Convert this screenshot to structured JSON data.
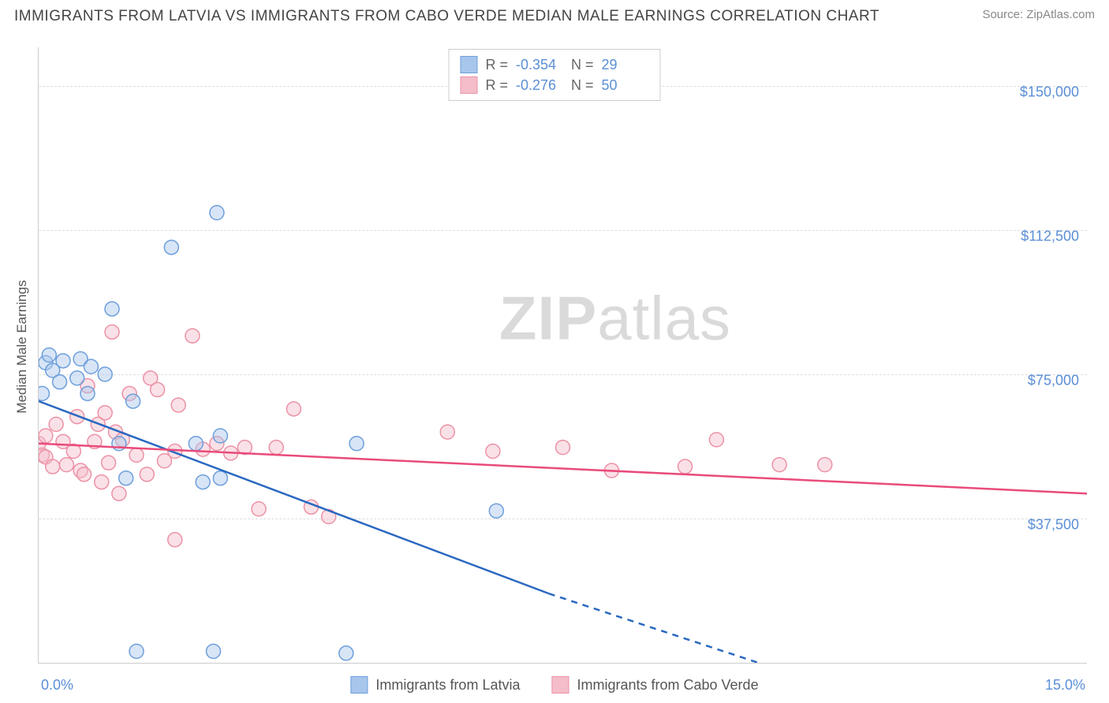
{
  "title": "IMMIGRANTS FROM LATVIA VS IMMIGRANTS FROM CABO VERDE MEDIAN MALE EARNINGS CORRELATION CHART",
  "source": "Source: ZipAtlas.com",
  "ylabel": "Median Male Earnings",
  "watermark_a": "ZIP",
  "watermark_b": "atlas",
  "chart": {
    "type": "scatter",
    "xlim": [
      0,
      15
    ],
    "ylim": [
      0,
      160000
    ],
    "xticks": [
      {
        "v": 0,
        "label": "0.0%"
      },
      {
        "v": 15,
        "label": "15.0%"
      }
    ],
    "yticks": [
      {
        "v": 37500,
        "label": "$37,500"
      },
      {
        "v": 75000,
        "label": "$75,000"
      },
      {
        "v": 112500,
        "label": "$112,500"
      },
      {
        "v": 150000,
        "label": "$150,000"
      }
    ],
    "grid_color": "#dddddd",
    "axis_color": "#cccccc",
    "background_color": "#ffffff",
    "marker_radius": 9,
    "marker_opacity": 0.45,
    "line_width": 2.5,
    "series": [
      {
        "name": "Immigrants from Latvia",
        "color_fill": "#a8c6ec",
        "color_stroke": "#6d9fdc",
        "line_color": "#2a68c0",
        "R": "-0.354",
        "N": "29",
        "trend": {
          "x1": 0,
          "y1": 68000,
          "x2": 7.3,
          "y2": 18000,
          "x2_dash": 10.3,
          "y2_dash": 0
        },
        "points": [
          {
            "x": 0.05,
            "y": 70000
          },
          {
            "x": 0.1,
            "y": 78000
          },
          {
            "x": 0.15,
            "y": 80000
          },
          {
            "x": 0.2,
            "y": 76000
          },
          {
            "x": 0.3,
            "y": 73000
          },
          {
            "x": 0.35,
            "y": 78500
          },
          {
            "x": 0.55,
            "y": 74000
          },
          {
            "x": 0.6,
            "y": 79000
          },
          {
            "x": 0.7,
            "y": 70000
          },
          {
            "x": 0.75,
            "y": 77000
          },
          {
            "x": 0.95,
            "y": 75000
          },
          {
            "x": 1.05,
            "y": 92000
          },
          {
            "x": 1.15,
            "y": 57000
          },
          {
            "x": 1.25,
            "y": 48000
          },
          {
            "x": 1.35,
            "y": 68000
          },
          {
            "x": 1.4,
            "y": 3000
          },
          {
            "x": 1.9,
            "y": 108000
          },
          {
            "x": 2.25,
            "y": 57000
          },
          {
            "x": 2.35,
            "y": 47000
          },
          {
            "x": 2.5,
            "y": 3000
          },
          {
            "x": 2.55,
            "y": 117000
          },
          {
            "x": 2.6,
            "y": 48000
          },
          {
            "x": 2.6,
            "y": 59000
          },
          {
            "x": 4.4,
            "y": 2500
          },
          {
            "x": 4.55,
            "y": 57000
          },
          {
            "x": 6.55,
            "y": 39500
          }
        ]
      },
      {
        "name": "Immigrants from Cabo Verde",
        "color_fill": "#f4bdc9",
        "color_stroke": "#ec92a6",
        "line_color": "#e94b7a",
        "R": "-0.276",
        "N": "50",
        "trend": {
          "x1": 0,
          "y1": 57000,
          "x2": 15,
          "y2": 44000
        },
        "points": [
          {
            "x": 0.0,
            "y": 57000
          },
          {
            "x": 0.05,
            "y": 54000
          },
          {
            "x": 0.1,
            "y": 53500
          },
          {
            "x": 0.1,
            "y": 59000
          },
          {
            "x": 0.2,
            "y": 51000
          },
          {
            "x": 0.25,
            "y": 62000
          },
          {
            "x": 0.35,
            "y": 57500
          },
          {
            "x": 0.4,
            "y": 51500
          },
          {
            "x": 0.5,
            "y": 55000
          },
          {
            "x": 0.55,
            "y": 64000
          },
          {
            "x": 0.6,
            "y": 50000
          },
          {
            "x": 0.65,
            "y": 49000
          },
          {
            "x": 0.7,
            "y": 72000
          },
          {
            "x": 0.8,
            "y": 57500
          },
          {
            "x": 0.85,
            "y": 62000
          },
          {
            "x": 0.9,
            "y": 47000
          },
          {
            "x": 0.95,
            "y": 65000
          },
          {
            "x": 1.0,
            "y": 52000
          },
          {
            "x": 1.05,
            "y": 86000
          },
          {
            "x": 1.1,
            "y": 60000
          },
          {
            "x": 1.15,
            "y": 44000
          },
          {
            "x": 1.2,
            "y": 58000
          },
          {
            "x": 1.3,
            "y": 70000
          },
          {
            "x": 1.4,
            "y": 54000
          },
          {
            "x": 1.55,
            "y": 49000
          },
          {
            "x": 1.6,
            "y": 74000
          },
          {
            "x": 1.7,
            "y": 71000
          },
          {
            "x": 1.8,
            "y": 52500
          },
          {
            "x": 1.95,
            "y": 55000
          },
          {
            "x": 1.95,
            "y": 32000
          },
          {
            "x": 2.0,
            "y": 67000
          },
          {
            "x": 2.2,
            "y": 85000
          },
          {
            "x": 2.35,
            "y": 55500
          },
          {
            "x": 2.55,
            "y": 57000
          },
          {
            "x": 2.75,
            "y": 54500
          },
          {
            "x": 2.95,
            "y": 56000
          },
          {
            "x": 3.15,
            "y": 40000
          },
          {
            "x": 3.4,
            "y": 56000
          },
          {
            "x": 3.65,
            "y": 66000
          },
          {
            "x": 3.9,
            "y": 40500
          },
          {
            "x": 4.15,
            "y": 38000
          },
          {
            "x": 5.85,
            "y": 60000
          },
          {
            "x": 6.5,
            "y": 55000
          },
          {
            "x": 7.5,
            "y": 56000
          },
          {
            "x": 8.2,
            "y": 50000
          },
          {
            "x": 9.25,
            "y": 51000
          },
          {
            "x": 9.7,
            "y": 58000
          },
          {
            "x": 10.6,
            "y": 51500
          },
          {
            "x": 11.25,
            "y": 51500
          }
        ]
      }
    ]
  },
  "legend_bottom": [
    {
      "label": "Immigrants from Latvia"
    },
    {
      "label": "Immigrants from Cabo Verde"
    }
  ]
}
